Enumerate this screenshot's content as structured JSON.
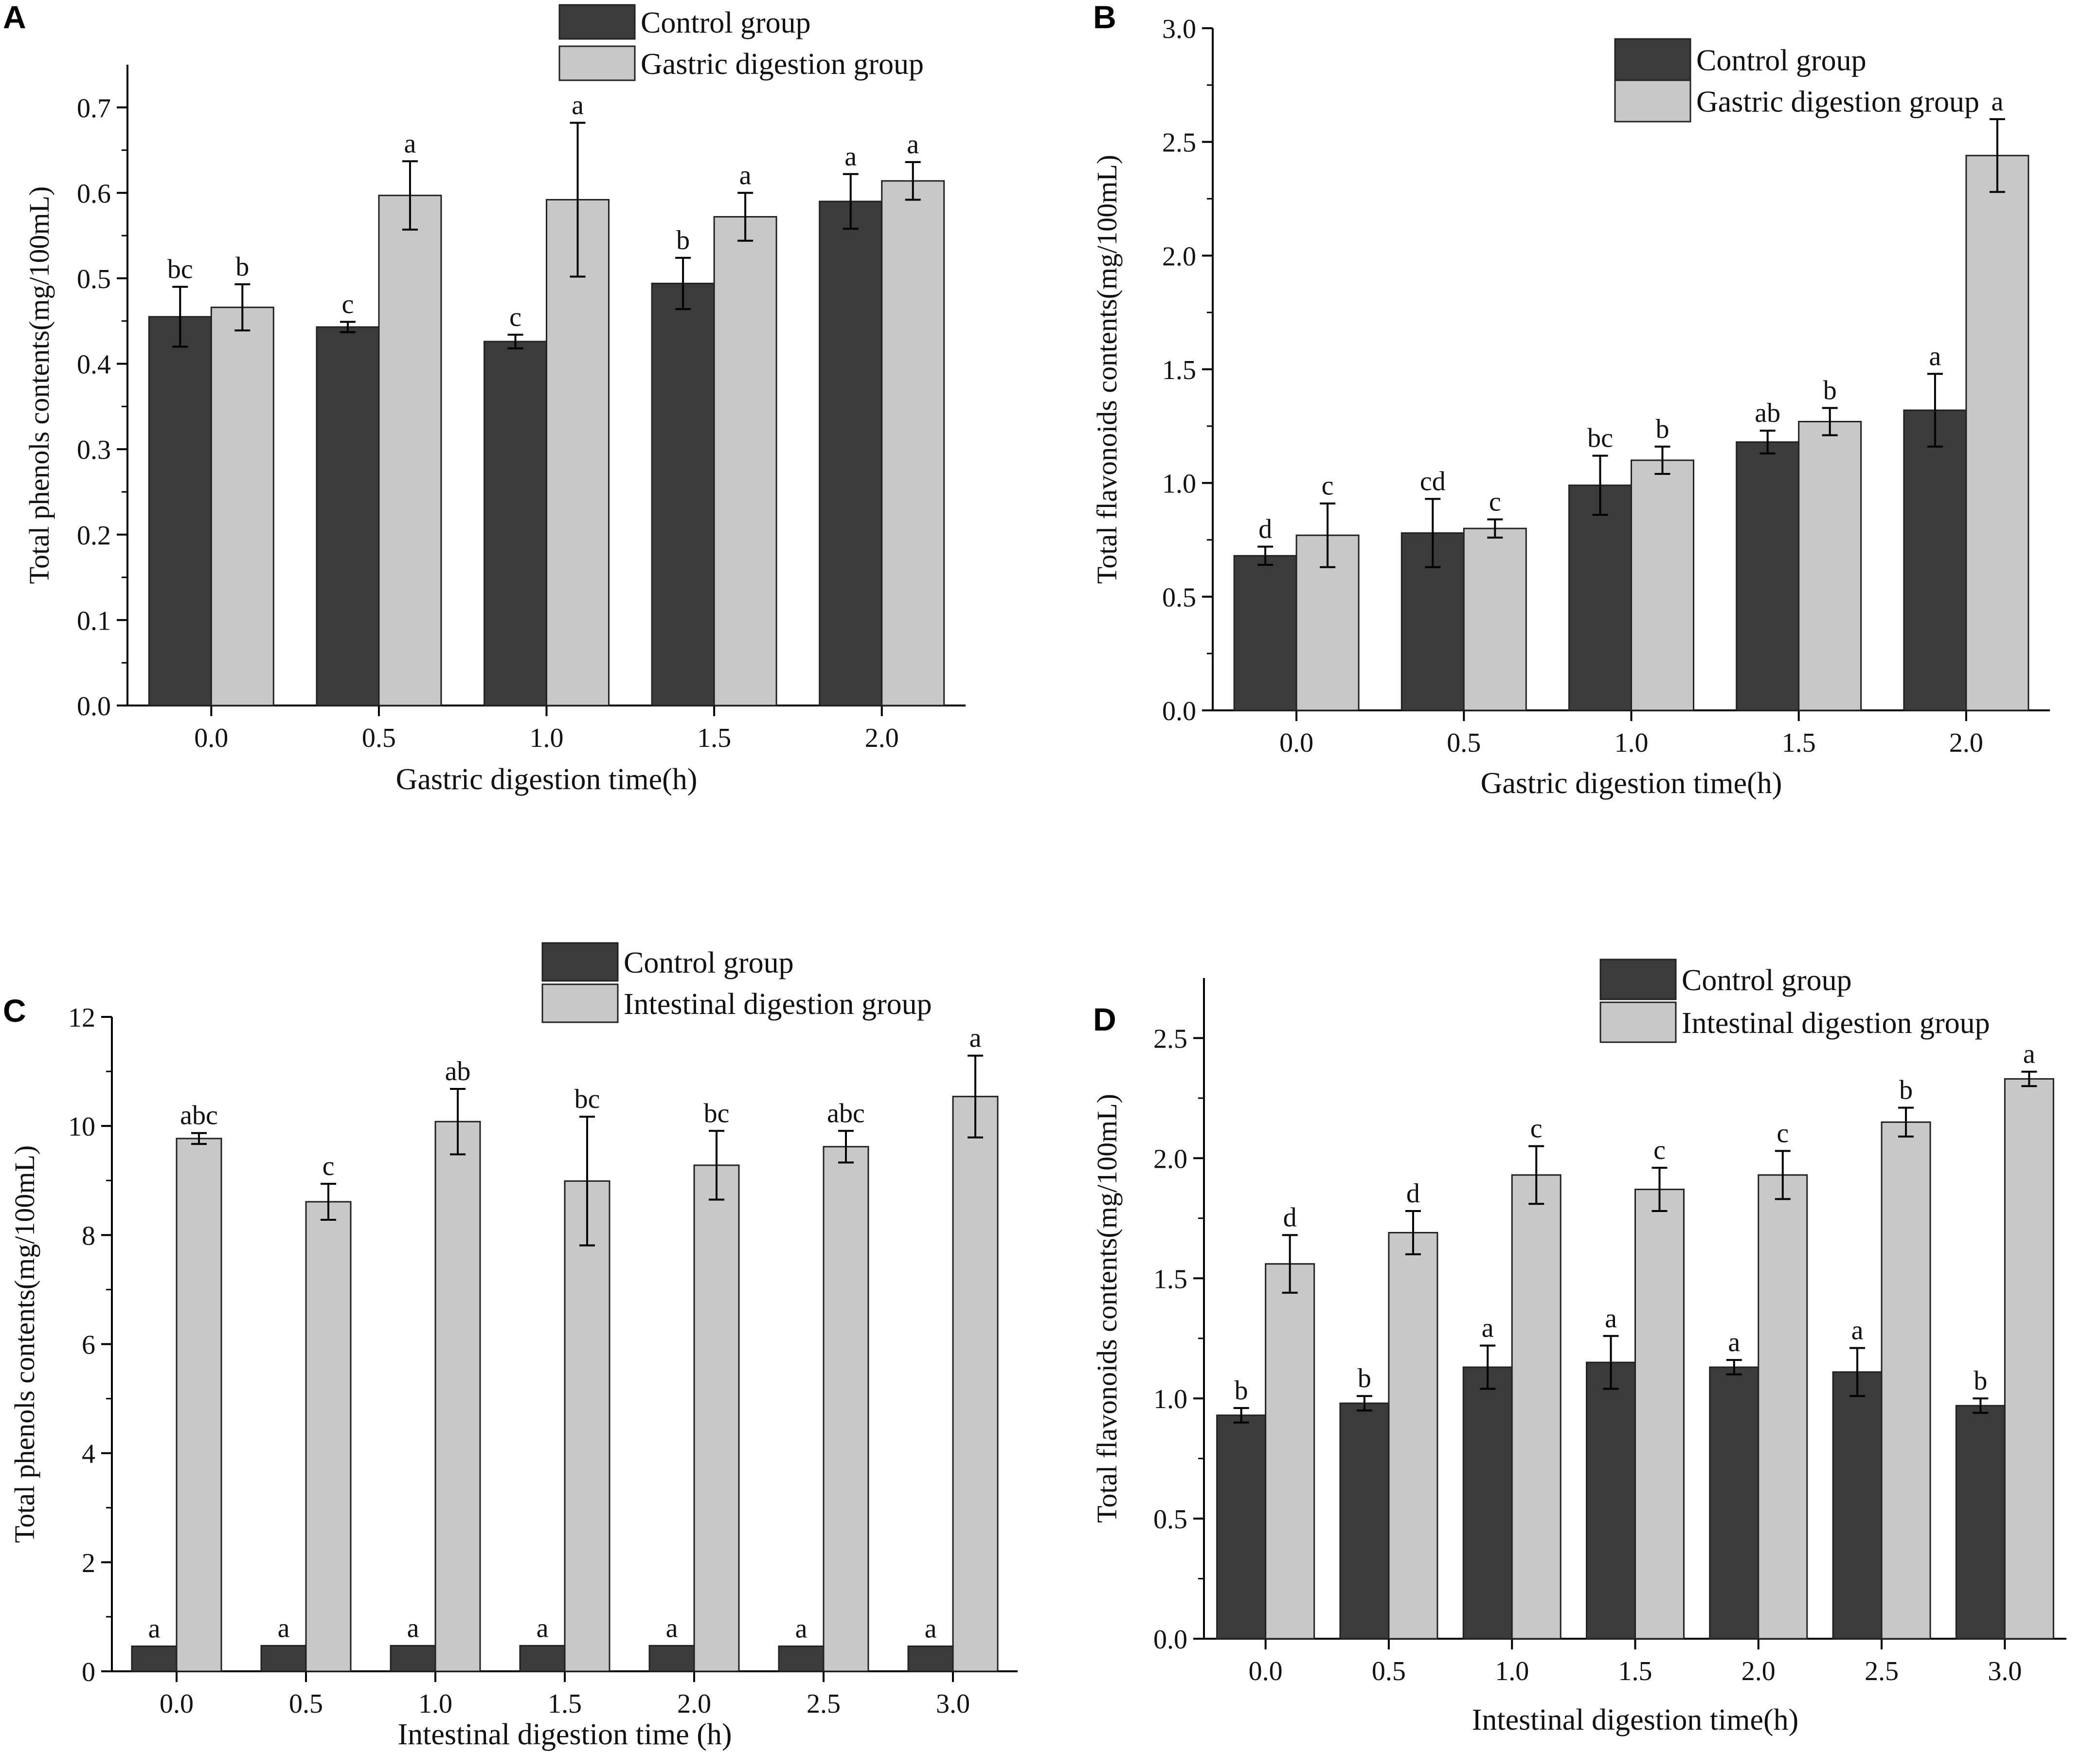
{
  "colors": {
    "control": "#3b3b3b",
    "treatment": "#c8c8c8",
    "axis": "#000000",
    "text": "#111111"
  },
  "chart_data": [
    {
      "panel": "A",
      "type": "bar",
      "ylabel": "Total phenols contents(mg/100mL)",
      "xlabel": "Gastric digestion time(h)",
      "ylim": [
        0,
        0.75
      ],
      "yticks": [
        "0.0",
        "0.1",
        "0.2",
        "0.3",
        "0.4",
        "0.5",
        "0.6",
        "0.7"
      ],
      "ytick_values": [
        0,
        0.1,
        0.2,
        0.3,
        0.4,
        0.5,
        0.6,
        0.7
      ],
      "categories": [
        "0.0",
        "0.5",
        "1.0",
        "1.5",
        "2.0"
      ],
      "legend": [
        "Control group",
        "Gastric digestion group"
      ],
      "series": [
        {
          "name": "Control group",
          "values": [
            0.455,
            0.443,
            0.426,
            0.494,
            0.59
          ],
          "errors": [
            0.035,
            0.006,
            0.008,
            0.03,
            0.032
          ],
          "labels": [
            "bc",
            "c",
            "c",
            "b",
            "a"
          ]
        },
        {
          "name": "Gastric digestion group",
          "values": [
            0.466,
            0.597,
            0.592,
            0.572,
            0.614
          ],
          "errors": [
            0.027,
            0.04,
            0.09,
            0.028,
            0.022
          ],
          "labels": [
            "b",
            "a",
            "a",
            "a",
            "a"
          ]
        }
      ]
    },
    {
      "panel": "B",
      "type": "bar",
      "ylabel": "Total flavonoids contents(mg/100mL)",
      "xlabel": "Gastric digestion time(h)",
      "ylim": [
        0,
        3.0
      ],
      "yticks": [
        "0.0",
        "0.5",
        "1.0",
        "1.5",
        "2.0",
        "2.5",
        "3.0"
      ],
      "ytick_values": [
        0,
        0.5,
        1.0,
        1.5,
        2.0,
        2.5,
        3.0
      ],
      "categories": [
        "0.0",
        "0.5",
        "1.0",
        "1.5",
        "2.0"
      ],
      "legend": [
        "Control group",
        "Gastric digestion group"
      ],
      "series": [
        {
          "name": "Control group",
          "values": [
            0.68,
            0.78,
            0.99,
            1.18,
            1.32
          ],
          "errors": [
            0.04,
            0.15,
            0.13,
            0.05,
            0.16
          ],
          "labels": [
            "d",
            "cd",
            "bc",
            "ab",
            "a"
          ]
        },
        {
          "name": "Gastric digestion group",
          "values": [
            0.77,
            0.8,
            1.1,
            1.27,
            2.44
          ],
          "errors": [
            0.14,
            0.04,
            0.06,
            0.06,
            0.16
          ],
          "labels": [
            "c",
            "c",
            "b",
            "b",
            "a"
          ]
        }
      ]
    },
    {
      "panel": "C",
      "type": "bar",
      "ylabel": "Total phenols contents(mg/100mL)",
      "xlabel": "Intestinal digestion time (h)",
      "ylim": [
        0,
        12
      ],
      "yticks": [
        "0",
        "2",
        "4",
        "6",
        "8",
        "10",
        "12"
      ],
      "ytick_values": [
        0,
        2,
        4,
        6,
        8,
        10,
        12
      ],
      "categories": [
        "0.0",
        "0.5",
        "1.0",
        "1.5",
        "2.0",
        "2.5",
        "3.0"
      ],
      "legend": [
        "Control group",
        "Intestinal digestion group"
      ],
      "series": [
        {
          "name": "Control group",
          "values": [
            0.46,
            0.47,
            0.47,
            0.47,
            0.47,
            0.46,
            0.46
          ],
          "errors": [
            0,
            0,
            0,
            0,
            0,
            0,
            0
          ],
          "labels": [
            "a",
            "a",
            "a",
            "a",
            "a",
            "a",
            "a"
          ]
        },
        {
          "name": "Intestinal digestion group",
          "values": [
            9.77,
            8.61,
            10.08,
            8.99,
            9.28,
            9.62,
            10.54
          ],
          "errors": [
            0.1,
            0.33,
            0.6,
            1.18,
            0.63,
            0.29,
            0.75
          ],
          "labels": [
            "abc",
            "c",
            "ab",
            "bc",
            "bc",
            "abc",
            "a"
          ]
        }
      ]
    },
    {
      "panel": "D",
      "type": "bar",
      "ylabel": "Total flavonoids contents(mg/100mL)",
      "xlabel": "Intestinal digestion time(h)",
      "ylim": [
        0,
        2.75
      ],
      "yticks": [
        "0.0",
        "0.5",
        "1.0",
        "1.5",
        "2.0",
        "2.5"
      ],
      "ytick_values": [
        0,
        0.5,
        1.0,
        1.5,
        2.0,
        2.5
      ],
      "categories": [
        "0.0",
        "0.5",
        "1.0",
        "1.5",
        "2.0",
        "2.5",
        "3.0"
      ],
      "legend": [
        "Control group",
        "Intestinal digestion group"
      ],
      "series": [
        {
          "name": "Control group",
          "values": [
            0.93,
            0.98,
            1.13,
            1.15,
            1.13,
            1.11,
            0.97
          ],
          "errors": [
            0.03,
            0.03,
            0.09,
            0.11,
            0.03,
            0.1,
            0.03
          ],
          "labels": [
            "b",
            "b",
            "a",
            "a",
            "a",
            "a",
            "b"
          ]
        },
        {
          "name": "Intestinal digestion group",
          "values": [
            1.56,
            1.69,
            1.93,
            1.87,
            1.93,
            2.15,
            2.33
          ],
          "errors": [
            0.12,
            0.09,
            0.12,
            0.09,
            0.1,
            0.06,
            0.03
          ],
          "labels": [
            "d",
            "d",
            "c",
            "c",
            "c",
            "b",
            "a"
          ]
        }
      ]
    }
  ]
}
